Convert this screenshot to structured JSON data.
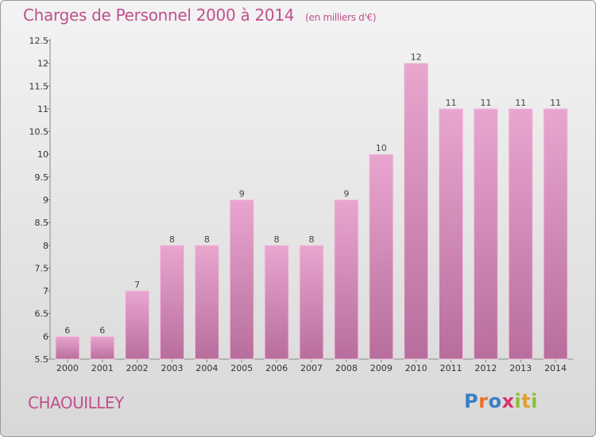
{
  "header": {
    "title": "Charges de Personnel 2000 à 2014",
    "subtitle": "(en milliers d'€)"
  },
  "commune": "CHAOUILLEY",
  "logo": {
    "text": "Proxiti",
    "letters": [
      "P",
      "r",
      "o",
      "x",
      "i",
      "t",
      "i"
    ],
    "colors": [
      "#3b7fc4",
      "#e8732c",
      "#3b7fc4",
      "#d8336b",
      "#8bbf3a",
      "#e0a12a",
      "#8bbf3a"
    ]
  },
  "chart_data": {
    "type": "bar",
    "categories": [
      "2000",
      "2001",
      "2002",
      "2003",
      "2004",
      "2005",
      "2006",
      "2007",
      "2008",
      "2009",
      "2010",
      "2011",
      "2012",
      "2013",
      "2014"
    ],
    "values": [
      6,
      6,
      7,
      8,
      8,
      9,
      8,
      8,
      9,
      10,
      12,
      11,
      11,
      11,
      11
    ],
    "data_labels": [
      "6",
      "6",
      "7",
      "8",
      "8",
      "9",
      "8",
      "8",
      "9",
      "10",
      "12",
      "11",
      "11",
      "11",
      "11"
    ],
    "yticks": [
      "5.5",
      "6",
      "6.5",
      "7",
      "7.5",
      "8",
      "8.5",
      "9",
      "9.5",
      "10",
      "10.5",
      "11",
      "11.5",
      "12",
      "12.5"
    ],
    "ylim": [
      5.5,
      12.5
    ],
    "grid": false,
    "bar_color": "#d98ab8"
  }
}
